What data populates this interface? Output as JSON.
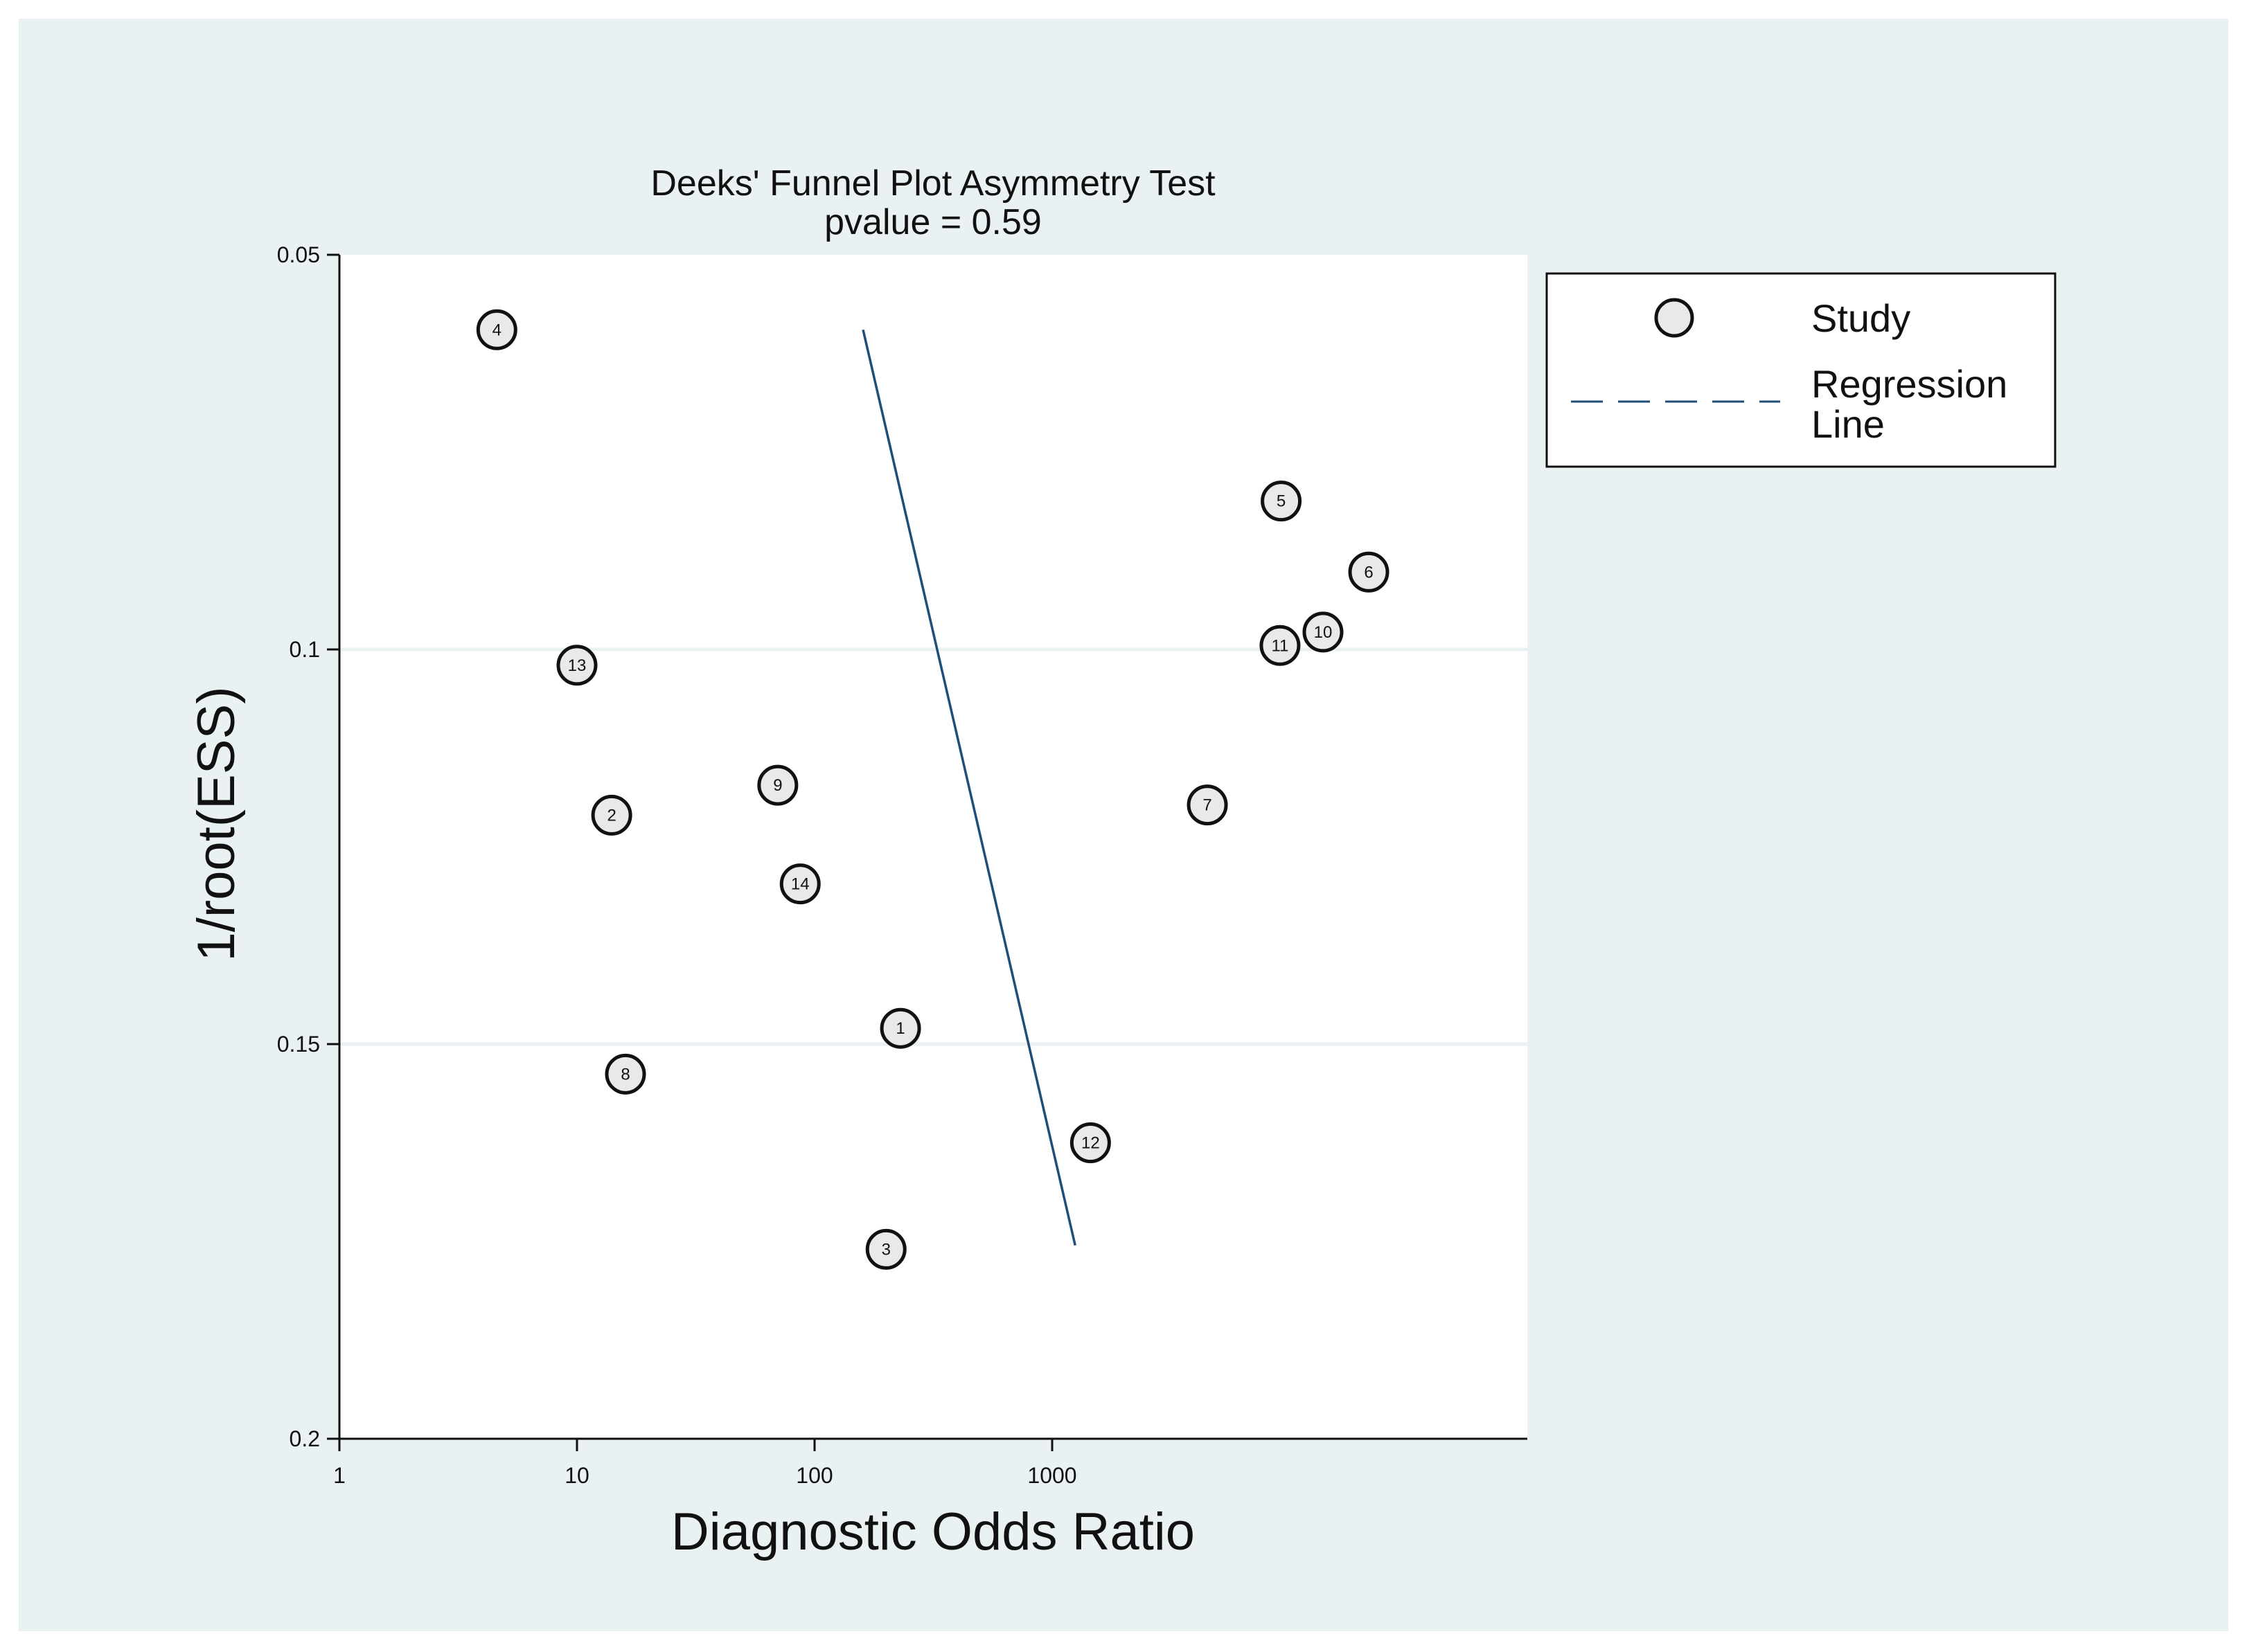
{
  "chart_data": {
    "type": "scatter",
    "title": "Deeks' Funnel Plot Asymmetry Test",
    "subtitle": "pvalue =   0.59",
    "xlabel": "Diagnostic Odds Ratio",
    "ylabel": "1/root(ESS)",
    "x_scale": "log10",
    "xlim": [
      1,
      100000
    ],
    "ylim": [
      0.05,
      0.2
    ],
    "y_inverted": true,
    "x_ticks": [
      1,
      10,
      100,
      1000
    ],
    "x_tick_labels": [
      "1",
      "10",
      "100",
      "1000"
    ],
    "y_ticks": [
      0.05,
      0.1,
      0.15,
      0.2
    ],
    "y_tick_labels": [
      "0.05",
      "0.1",
      "0.15",
      "0.2"
    ],
    "grid_y": [
      0.1,
      0.15
    ],
    "points": [
      {
        "label": "1",
        "x": 230,
        "y": 0.148
      },
      {
        "label": "2",
        "x": 14,
        "y": 0.121
      },
      {
        "label": "3",
        "x": 200,
        "y": 0.176
      },
      {
        "label": "4",
        "x": 4.6,
        "y": 0.0595
      },
      {
        "label": "5",
        "x": 9200,
        "y": 0.0812
      },
      {
        "label": "6",
        "x": 21500,
        "y": 0.0902
      },
      {
        "label": "7",
        "x": 4500,
        "y": 0.1197
      },
      {
        "label": "8",
        "x": 16,
        "y": 0.1538
      },
      {
        "label": "9",
        "x": 70,
        "y": 0.1172
      },
      {
        "label": "10",
        "x": 13800,
        "y": 0.0978
      },
      {
        "label": "11",
        "x": 9100,
        "y": 0.0995
      },
      {
        "label": "12",
        "x": 1450,
        "y": 0.1625
      },
      {
        "label": "13",
        "x": 10,
        "y": 0.102
      },
      {
        "label": "14",
        "x": 87,
        "y": 0.1297
      }
    ],
    "regression_line": {
      "x": [
        160,
        1250
      ],
      "y": [
        0.0595,
        0.1755
      ],
      "color": "#1f4e79"
    },
    "legend": {
      "position": "top-right outside",
      "entries": [
        {
          "symbol": "circle",
          "label": "Study"
        },
        {
          "symbol": "dash",
          "label_lines": [
            "Regression",
            "Line"
          ]
        }
      ]
    }
  }
}
